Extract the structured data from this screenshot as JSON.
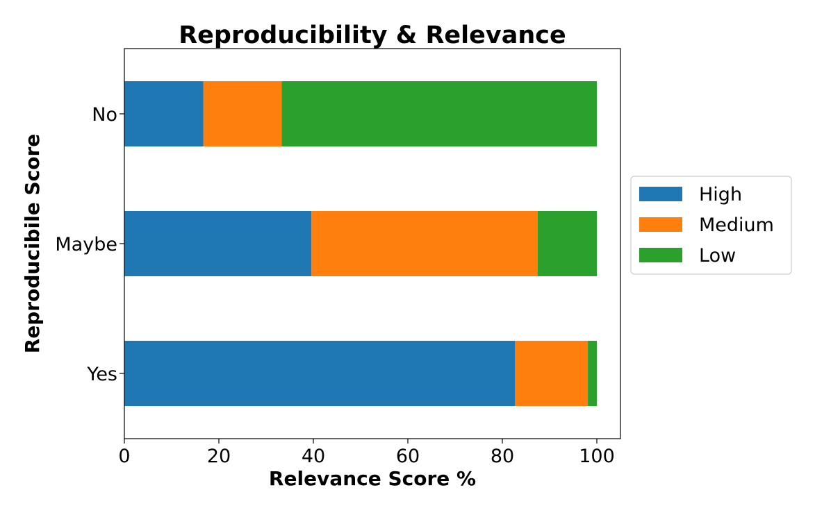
{
  "chart_data": {
    "type": "bar",
    "orientation": "horizontal",
    "stacked": true,
    "title": "Reproducibility & Relevance",
    "xlabel": "Relevance Score %",
    "ylabel": "Reproducibile Score",
    "categories": [
      "Yes",
      "Maybe",
      "No"
    ],
    "series": [
      {
        "name": "High",
        "color": "#1f77b4",
        "values": [
          82.7,
          39.6,
          16.7
        ]
      },
      {
        "name": "Medium",
        "color": "#ff7f0e",
        "values": [
          15.4,
          47.9,
          16.6
        ]
      },
      {
        "name": "Low",
        "color": "#2ca02c",
        "values": [
          1.9,
          12.5,
          66.7
        ]
      }
    ],
    "xlim": [
      0,
      105
    ],
    "xticks": [
      0,
      20,
      40,
      60,
      80,
      100
    ],
    "grid": false,
    "legend_position": "right"
  }
}
